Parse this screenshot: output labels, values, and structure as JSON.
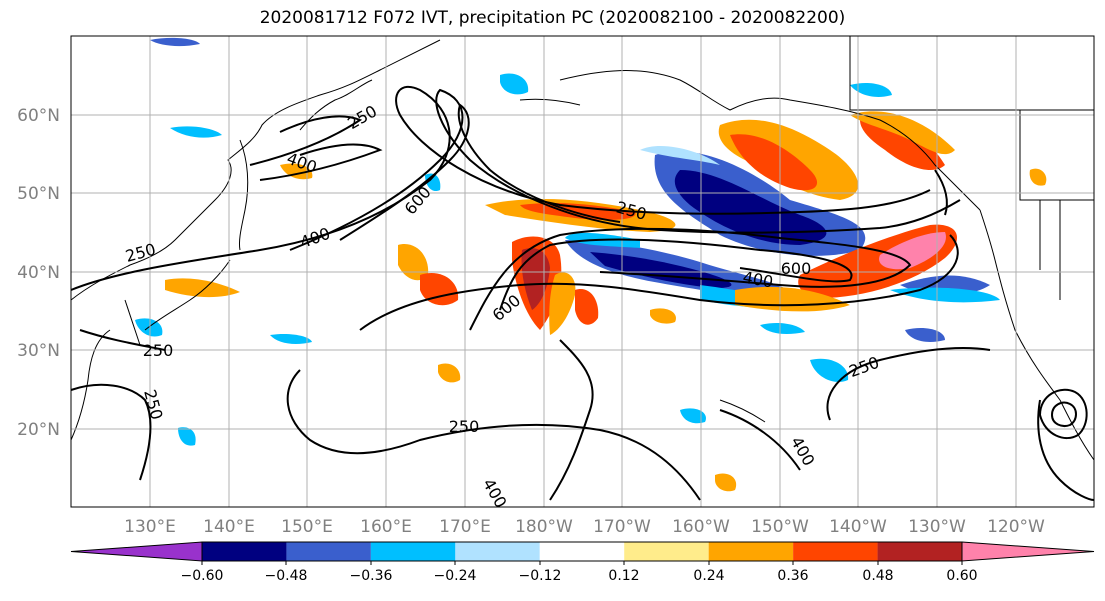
{
  "title": "2020081712 F072 IVT, precipitation PC (2020082100 - 2020082200)",
  "lat_labels": [
    "60°N",
    "50°N",
    "40°N",
    "30°N",
    "20°N"
  ],
  "lon_labels": [
    "130°E",
    "140°E",
    "150°E",
    "160°E",
    "170°E",
    "180°W",
    "170°W",
    "160°W",
    "150°W",
    "140°W",
    "130°W",
    "120°W"
  ],
  "ivt_contour_levels": [
    "250",
    "400",
    "600"
  ],
  "contour_labels": [
    "250",
    "400",
    "600",
    "250",
    "400",
    "600",
    "250",
    "250",
    "400",
    "600",
    "250",
    "250",
    "250",
    "400",
    "400"
  ],
  "colorbar": {
    "ticks": [
      "−0.60",
      "−0.48",
      "−0.36",
      "−0.24",
      "−0.12",
      "0.12",
      "0.24",
      "0.36",
      "0.48",
      "0.60"
    ],
    "colors": [
      "#9932cc",
      "#000080",
      "#3a5fcd",
      "#00bfff",
      "#b0e2ff",
      "#ffffff",
      "#ffec8b",
      "#ffa500",
      "#ff4500",
      "#b22222",
      "#ff82ab"
    ]
  }
}
